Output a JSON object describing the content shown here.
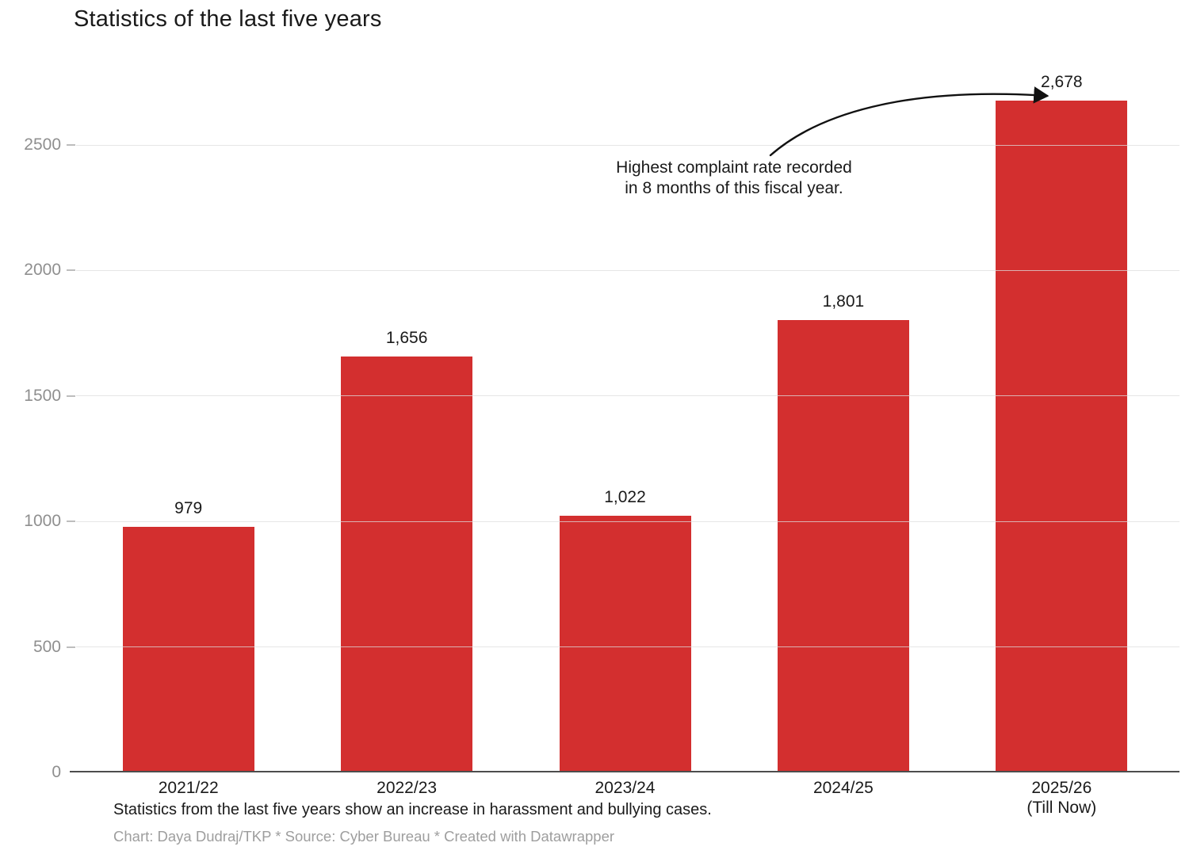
{
  "title": "Statistics of the last five years",
  "chart_data": {
    "type": "bar",
    "categories": [
      "2021/22",
      "2022/23",
      "2023/24",
      "2024/25",
      "2025/26 (Till Now)"
    ],
    "category_lines": [
      [
        "2021/22"
      ],
      [
        "2022/23"
      ],
      [
        "2023/24"
      ],
      [
        "2024/25"
      ],
      [
        "2025/26",
        "(Till Now)"
      ]
    ],
    "values": [
      979,
      1656,
      1022,
      1801,
      2678
    ],
    "value_labels": [
      "979",
      "1,656",
      "1,022",
      "1,801",
      "2,678"
    ],
    "title": "Statistics of the last five years",
    "xlabel": "",
    "ylabel": "",
    "ylim": [
      0,
      2678
    ],
    "yticks": [
      0,
      500,
      1000,
      1500,
      2000,
      2500
    ],
    "grid": "horizontal",
    "legend": "none",
    "bar_color": "#d32f2f",
    "annotation": {
      "line1": "Highest complaint rate recorded",
      "line2": "in 8 months of this fiscal year.",
      "target_value_label": "2,678"
    }
  },
  "footer": {
    "notes": "Statistics from the last five years show an increase in harassment and bullying cases.",
    "byline": "Chart: Daya Dudraj/TKP * Source: Cyber Bureau * Created with Datawrapper"
  }
}
